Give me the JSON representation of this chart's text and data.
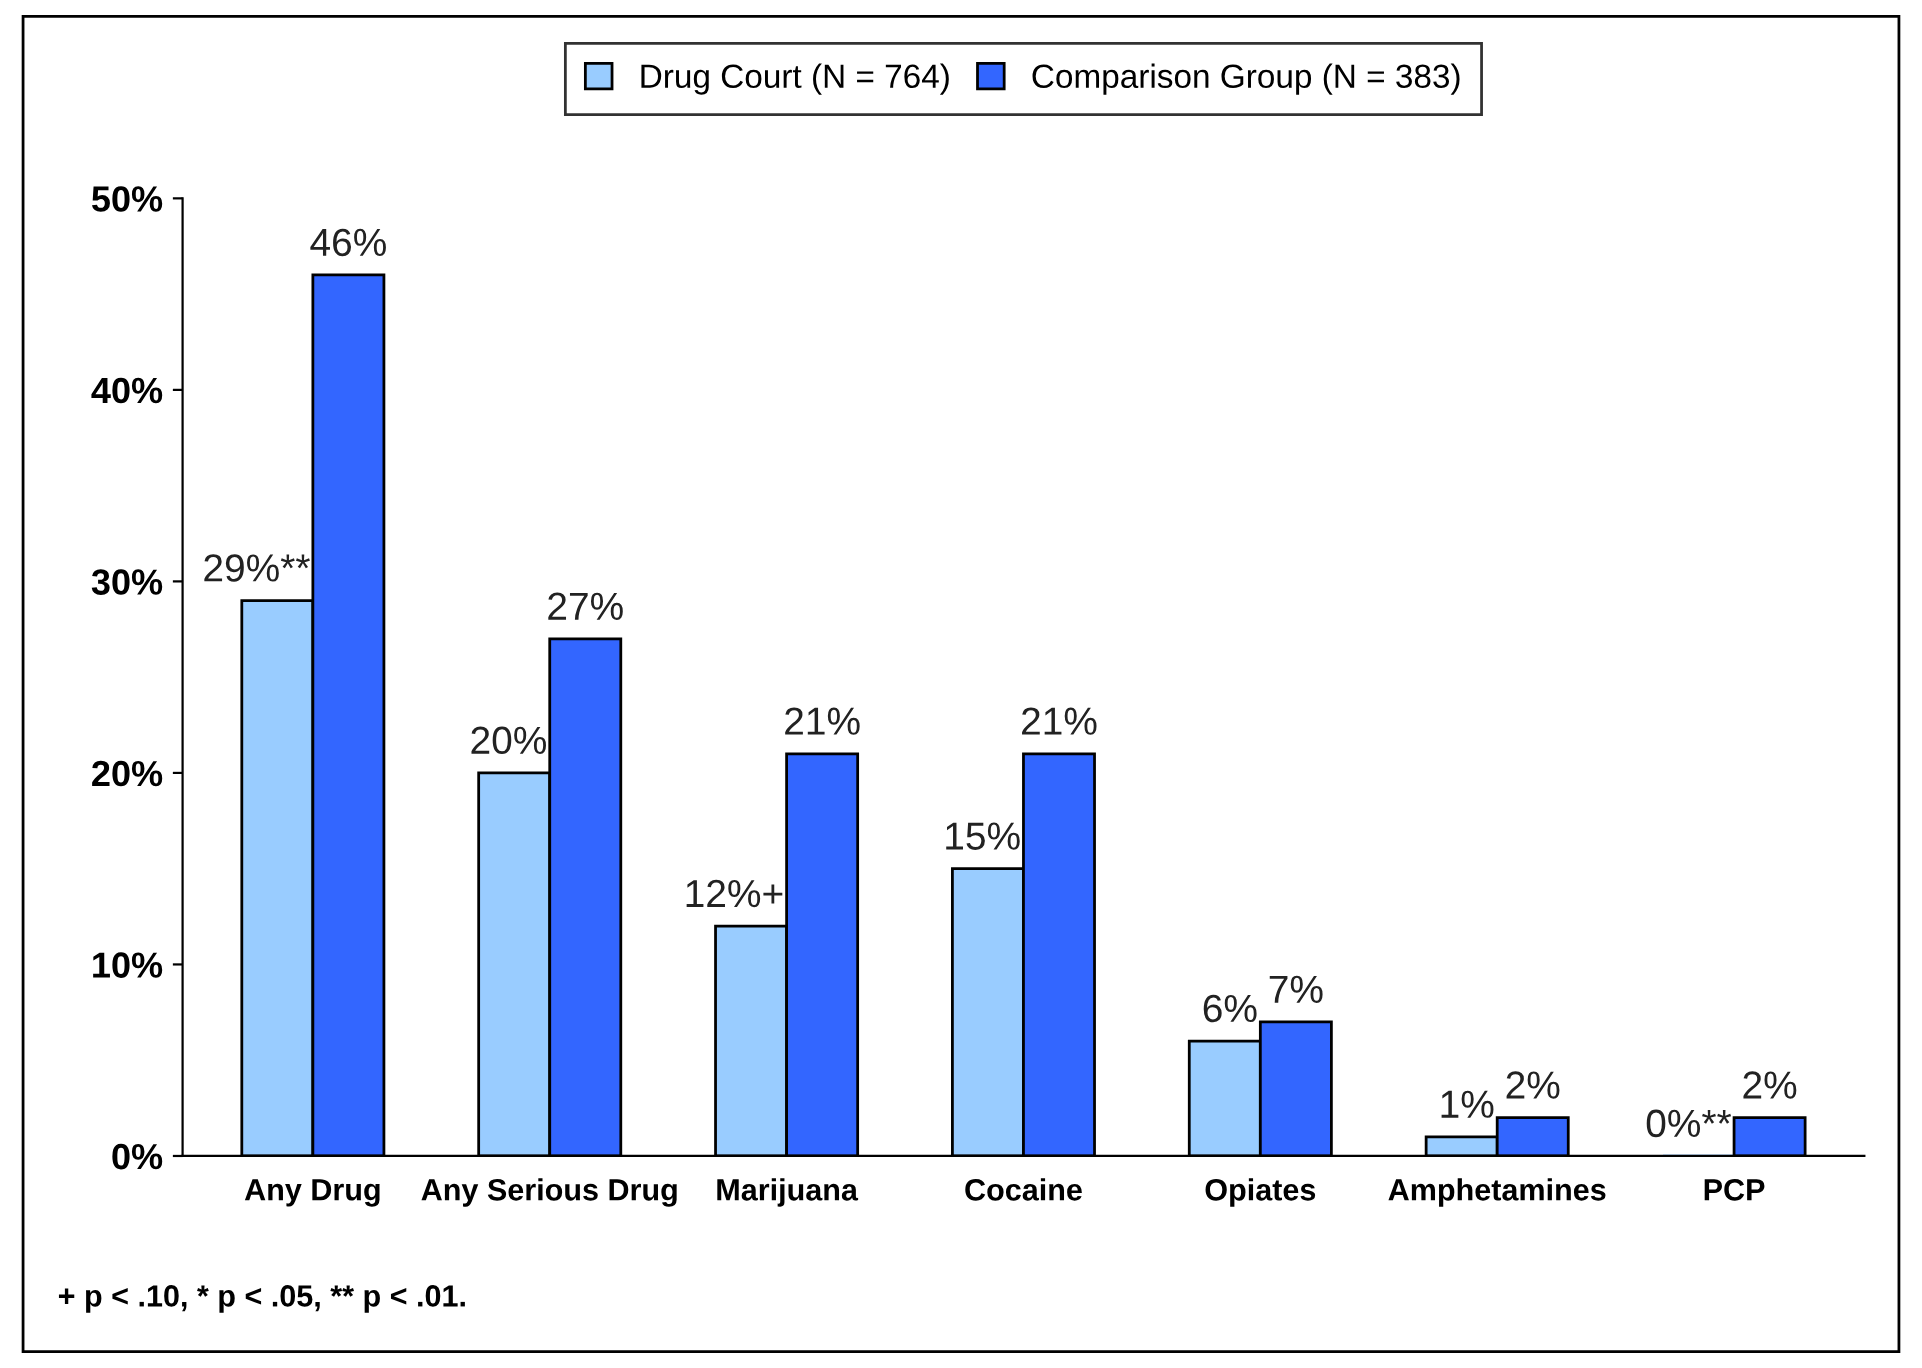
{
  "chart_data": {
    "type": "bar",
    "categories": [
      "Any Drug",
      "Any Serious Drug",
      "Marijuana",
      "Cocaine",
      "Opiates",
      "Amphetamines",
      "PCP"
    ],
    "series": [
      {
        "name": "Drug Court (N = 764)",
        "color": "#99ccff",
        "values": [
          29,
          20,
          12,
          15,
          6,
          1,
          0
        ],
        "value_labels": [
          "29%**",
          "20%",
          "12%+",
          "15%",
          "6%",
          "1%",
          "0%**"
        ]
      },
      {
        "name": "Comparison Group (N = 383)",
        "color": "#3366ff",
        "values": [
          46,
          27,
          21,
          21,
          7,
          2,
          2
        ],
        "value_labels": [
          "46%",
          "27%",
          "21%",
          "21%",
          "7%",
          "2%",
          "2%"
        ]
      }
    ],
    "ylim": [
      0,
      50
    ],
    "yticks": [
      {
        "value": 0,
        "label": "0%"
      },
      {
        "value": 10,
        "label": "10%"
      },
      {
        "value": 20,
        "label": "20%"
      },
      {
        "value": 30,
        "label": "30%"
      },
      {
        "value": 40,
        "label": "40%"
      },
      {
        "value": 50,
        "label": "50%"
      }
    ],
    "grid": false,
    "legend": "top",
    "annotations": [
      "+ p < .10, * p < .05, ** p < .01."
    ]
  }
}
